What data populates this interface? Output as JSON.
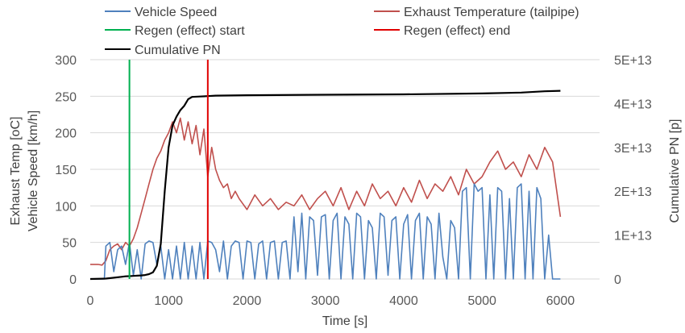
{
  "chart_data": {
    "type": "line",
    "x_axis": {
      "label": "Time [s]",
      "range": [
        0,
        6500
      ],
      "ticks": [
        "0",
        "1000",
        "2000",
        "3000",
        "4000",
        "5000",
        "6000"
      ]
    },
    "y_left": {
      "label_line1": "Exhaust Temp [oC]",
      "label_line2": "Vehicle Speed [km/h]",
      "range": [
        0,
        300
      ],
      "ticks": [
        "0",
        "50",
        "100",
        "150",
        "200",
        "250",
        "300"
      ]
    },
    "y_right": {
      "label": "Cumulative PN [p]",
      "range": [
        0,
        50000000000000
      ],
      "ticks": [
        "0",
        "1E+13",
        "2E+13",
        "3E+13",
        "4E+13",
        "5E+13"
      ]
    },
    "grid": "horizontal",
    "legend_position": "top",
    "legend": [
      {
        "name": "Vehicle Speed",
        "color": "#4f81bd"
      },
      {
        "name": "Exhaust Temperature (tailpipe)",
        "color": "#c0504d"
      },
      {
        "name": "Regen (effect) start",
        "color": "#00b050"
      },
      {
        "name": "Regen (effect) end",
        "color": "#e00000"
      },
      {
        "name": "Cumulative PN",
        "color": "#000000"
      }
    ],
    "series": [
      {
        "name": "Exhaust Temperature (tailpipe)",
        "axis": "left",
        "color": "#c0504d",
        "x": [
          0,
          100,
          150,
          200,
          250,
          300,
          350,
          400,
          450,
          500,
          550,
          600,
          650,
          700,
          750,
          800,
          850,
          900,
          950,
          1000,
          1050,
          1100,
          1150,
          1200,
          1250,
          1300,
          1350,
          1400,
          1450,
          1500,
          1550,
          1600,
          1650,
          1700,
          1750,
          1800,
          1850,
          1900,
          2000,
          2100,
          2200,
          2300,
          2400,
          2500,
          2600,
          2700,
          2800,
          2900,
          3000,
          3100,
          3200,
          3300,
          3400,
          3500,
          3600,
          3700,
          3800,
          3900,
          4000,
          4100,
          4200,
          4300,
          4400,
          4500,
          4600,
          4700,
          4800,
          4900,
          5000,
          5100,
          5200,
          5300,
          5400,
          5500,
          5600,
          5700,
          5800,
          5900,
          6000
        ],
        "y": [
          20,
          20,
          19,
          25,
          40,
          45,
          48,
          40,
          50,
          45,
          55,
          70,
          90,
          110,
          130,
          150,
          165,
          175,
          190,
          200,
          215,
          200,
          220,
          190,
          215,
          185,
          210,
          170,
          205,
          140,
          180,
          150,
          135,
          125,
          130,
          110,
          120,
          110,
          95,
          115,
          100,
          110,
          95,
          105,
          100,
          115,
          95,
          110,
          120,
          100,
          125,
          95,
          120,
          100,
          130,
          110,
          120,
          100,
          125,
          105,
          135,
          110,
          130,
          120,
          140,
          115,
          150,
          130,
          140,
          160,
          175,
          150,
          160,
          140,
          170,
          150,
          180,
          160,
          85
        ]
      },
      {
        "name": "Vehicle Speed",
        "axis": "left",
        "color": "#4f81bd",
        "x": [
          0,
          180,
          200,
          250,
          300,
          350,
          400,
          450,
          500,
          550,
          600,
          650,
          700,
          750,
          800,
          850,
          900,
          950,
          1000,
          1050,
          1100,
          1150,
          1200,
          1250,
          1300,
          1350,
          1400,
          1450,
          1500,
          1550,
          1600,
          1650,
          1700,
          1750,
          1800,
          1850,
          1900,
          1950,
          2000,
          2050,
          2100,
          2150,
          2200,
          2250,
          2300,
          2350,
          2400,
          2450,
          2500,
          2550,
          2600,
          2650,
          2700,
          2750,
          2800,
          2850,
          2900,
          2950,
          3000,
          3050,
          3100,
          3150,
          3200,
          3250,
          3300,
          3350,
          3400,
          3450,
          3500,
          3550,
          3600,
          3650,
          3700,
          3750,
          3800,
          3850,
          3900,
          3950,
          4000,
          4050,
          4100,
          4150,
          4200,
          4250,
          4300,
          4350,
          4400,
          4450,
          4500,
          4550,
          4600,
          4650,
          4700,
          4750,
          4800,
          4850,
          4900,
          4950,
          5000,
          5050,
          5100,
          5150,
          5200,
          5250,
          5300,
          5350,
          5400,
          5450,
          5500,
          5550,
          5600,
          5650,
          5700,
          5750,
          5800,
          5850,
          5900,
          5950,
          6000
        ],
        "y": [
          0,
          0,
          45,
          50,
          10,
          40,
          45,
          20,
          50,
          5,
          40,
          0,
          48,
          52,
          50,
          20,
          45,
          0,
          40,
          0,
          45,
          0,
          50,
          0,
          45,
          0,
          50,
          0,
          52,
          50,
          40,
          10,
          52,
          0,
          45,
          52,
          50,
          0,
          52,
          50,
          0,
          48,
          52,
          0,
          50,
          52,
          0,
          50,
          52,
          0,
          85,
          10,
          90,
          0,
          85,
          80,
          5,
          85,
          88,
          0,
          80,
          90,
          0,
          85,
          75,
          0,
          90,
          85,
          0,
          80,
          70,
          0,
          90,
          85,
          5,
          80,
          85,
          0,
          75,
          88,
          0,
          80,
          90,
          0,
          85,
          75,
          0,
          90,
          30,
          0,
          80,
          70,
          0,
          120,
          125,
          0,
          130,
          120,
          125,
          0,
          115,
          0,
          125,
          120,
          0,
          110,
          0,
          125,
          130,
          0,
          120,
          0,
          125,
          110,
          0,
          60,
          0,
          0,
          0
        ]
      },
      {
        "name": "Cumulative PN",
        "axis": "right",
        "color": "#000000",
        "x": [
          0,
          200,
          400,
          450,
          500,
          550,
          600,
          650,
          700,
          750,
          800,
          850,
          900,
          950,
          1000,
          1050,
          1100,
          1150,
          1200,
          1250,
          1300,
          1400,
          1500,
          1600,
          2000,
          3000,
          4000,
          5000,
          5500,
          5800,
          6000
        ],
        "y": [
          0,
          100000000000.0,
          500000000000.0,
          600000000000.0,
          650000000000.0,
          700000000000.0,
          750000000000.0,
          800000000000.0,
          900000000000.0,
          1100000000000.0,
          1500000000000.0,
          3000000000000.0,
          8000000000000.0,
          20000000000000.0,
          30000000000000.0,
          35000000000000.0,
          37000000000000.0,
          38500000000000.0,
          39500000000000.0,
          41000000000000.0,
          41500000000000.0,
          41600000000000.0,
          41700000000000.0,
          41800000000000.0,
          41900000000000.0,
          42000000000000.0,
          42100000000000.0,
          42300000000000.0,
          42500000000000.0,
          42800000000000.0,
          42900000000000.0
        ]
      }
    ],
    "markers": [
      {
        "name": "Regen (effect) start",
        "x": 500,
        "color": "#00b050"
      },
      {
        "name": "Regen (effect) end",
        "x": 1500,
        "color": "#e00000"
      }
    ]
  }
}
